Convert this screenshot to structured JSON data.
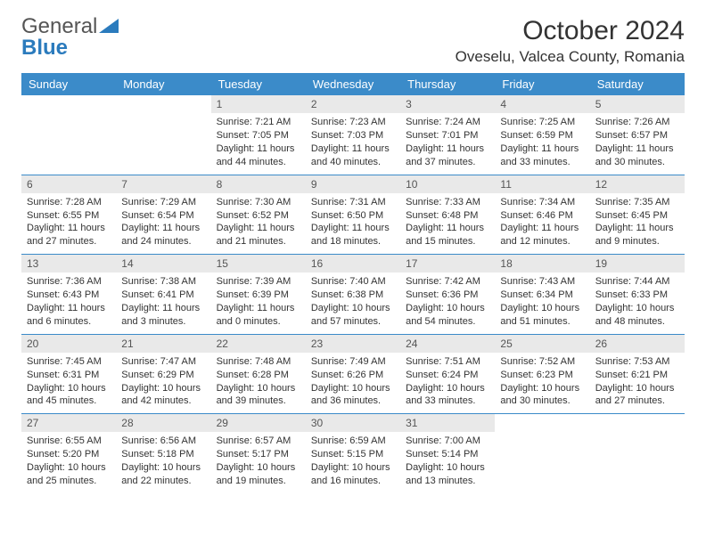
{
  "brand": {
    "part1": "General",
    "part2": "Blue"
  },
  "title": "October 2024",
  "location": "Oveselu, Valcea County, Romania",
  "colors": {
    "header_bar": "#3b8bc9",
    "header_text": "#ffffff",
    "day_num_bg": "#e9e9e9",
    "text": "#333333",
    "brand_blue": "#2b7bbd",
    "rule": "#3b8bc9",
    "background": "#ffffff"
  },
  "typography": {
    "title_fontsize": 30,
    "location_fontsize": 17,
    "dow_fontsize": 13,
    "daynum_fontsize": 12,
    "body_fontsize": 11
  },
  "dow": [
    "Sunday",
    "Monday",
    "Tuesday",
    "Wednesday",
    "Thursday",
    "Friday",
    "Saturday"
  ],
  "weeks": [
    [
      {
        "n": "",
        "sr": "",
        "ss": "",
        "dl": ""
      },
      {
        "n": "",
        "sr": "",
        "ss": "",
        "dl": ""
      },
      {
        "n": "1",
        "sr": "Sunrise: 7:21 AM",
        "ss": "Sunset: 7:05 PM",
        "dl": "Daylight: 11 hours and 44 minutes."
      },
      {
        "n": "2",
        "sr": "Sunrise: 7:23 AM",
        "ss": "Sunset: 7:03 PM",
        "dl": "Daylight: 11 hours and 40 minutes."
      },
      {
        "n": "3",
        "sr": "Sunrise: 7:24 AM",
        "ss": "Sunset: 7:01 PM",
        "dl": "Daylight: 11 hours and 37 minutes."
      },
      {
        "n": "4",
        "sr": "Sunrise: 7:25 AM",
        "ss": "Sunset: 6:59 PM",
        "dl": "Daylight: 11 hours and 33 minutes."
      },
      {
        "n": "5",
        "sr": "Sunrise: 7:26 AM",
        "ss": "Sunset: 6:57 PM",
        "dl": "Daylight: 11 hours and 30 minutes."
      }
    ],
    [
      {
        "n": "6",
        "sr": "Sunrise: 7:28 AM",
        "ss": "Sunset: 6:55 PM",
        "dl": "Daylight: 11 hours and 27 minutes."
      },
      {
        "n": "7",
        "sr": "Sunrise: 7:29 AM",
        "ss": "Sunset: 6:54 PM",
        "dl": "Daylight: 11 hours and 24 minutes."
      },
      {
        "n": "8",
        "sr": "Sunrise: 7:30 AM",
        "ss": "Sunset: 6:52 PM",
        "dl": "Daylight: 11 hours and 21 minutes."
      },
      {
        "n": "9",
        "sr": "Sunrise: 7:31 AM",
        "ss": "Sunset: 6:50 PM",
        "dl": "Daylight: 11 hours and 18 minutes."
      },
      {
        "n": "10",
        "sr": "Sunrise: 7:33 AM",
        "ss": "Sunset: 6:48 PM",
        "dl": "Daylight: 11 hours and 15 minutes."
      },
      {
        "n": "11",
        "sr": "Sunrise: 7:34 AM",
        "ss": "Sunset: 6:46 PM",
        "dl": "Daylight: 11 hours and 12 minutes."
      },
      {
        "n": "12",
        "sr": "Sunrise: 7:35 AM",
        "ss": "Sunset: 6:45 PM",
        "dl": "Daylight: 11 hours and 9 minutes."
      }
    ],
    [
      {
        "n": "13",
        "sr": "Sunrise: 7:36 AM",
        "ss": "Sunset: 6:43 PM",
        "dl": "Daylight: 11 hours and 6 minutes."
      },
      {
        "n": "14",
        "sr": "Sunrise: 7:38 AM",
        "ss": "Sunset: 6:41 PM",
        "dl": "Daylight: 11 hours and 3 minutes."
      },
      {
        "n": "15",
        "sr": "Sunrise: 7:39 AM",
        "ss": "Sunset: 6:39 PM",
        "dl": "Daylight: 11 hours and 0 minutes."
      },
      {
        "n": "16",
        "sr": "Sunrise: 7:40 AM",
        "ss": "Sunset: 6:38 PM",
        "dl": "Daylight: 10 hours and 57 minutes."
      },
      {
        "n": "17",
        "sr": "Sunrise: 7:42 AM",
        "ss": "Sunset: 6:36 PM",
        "dl": "Daylight: 10 hours and 54 minutes."
      },
      {
        "n": "18",
        "sr": "Sunrise: 7:43 AM",
        "ss": "Sunset: 6:34 PM",
        "dl": "Daylight: 10 hours and 51 minutes."
      },
      {
        "n": "19",
        "sr": "Sunrise: 7:44 AM",
        "ss": "Sunset: 6:33 PM",
        "dl": "Daylight: 10 hours and 48 minutes."
      }
    ],
    [
      {
        "n": "20",
        "sr": "Sunrise: 7:45 AM",
        "ss": "Sunset: 6:31 PM",
        "dl": "Daylight: 10 hours and 45 minutes."
      },
      {
        "n": "21",
        "sr": "Sunrise: 7:47 AM",
        "ss": "Sunset: 6:29 PM",
        "dl": "Daylight: 10 hours and 42 minutes."
      },
      {
        "n": "22",
        "sr": "Sunrise: 7:48 AM",
        "ss": "Sunset: 6:28 PM",
        "dl": "Daylight: 10 hours and 39 minutes."
      },
      {
        "n": "23",
        "sr": "Sunrise: 7:49 AM",
        "ss": "Sunset: 6:26 PM",
        "dl": "Daylight: 10 hours and 36 minutes."
      },
      {
        "n": "24",
        "sr": "Sunrise: 7:51 AM",
        "ss": "Sunset: 6:24 PM",
        "dl": "Daylight: 10 hours and 33 minutes."
      },
      {
        "n": "25",
        "sr": "Sunrise: 7:52 AM",
        "ss": "Sunset: 6:23 PM",
        "dl": "Daylight: 10 hours and 30 minutes."
      },
      {
        "n": "26",
        "sr": "Sunrise: 7:53 AM",
        "ss": "Sunset: 6:21 PM",
        "dl": "Daylight: 10 hours and 27 minutes."
      }
    ],
    [
      {
        "n": "27",
        "sr": "Sunrise: 6:55 AM",
        "ss": "Sunset: 5:20 PM",
        "dl": "Daylight: 10 hours and 25 minutes."
      },
      {
        "n": "28",
        "sr": "Sunrise: 6:56 AM",
        "ss": "Sunset: 5:18 PM",
        "dl": "Daylight: 10 hours and 22 minutes."
      },
      {
        "n": "29",
        "sr": "Sunrise: 6:57 AM",
        "ss": "Sunset: 5:17 PM",
        "dl": "Daylight: 10 hours and 19 minutes."
      },
      {
        "n": "30",
        "sr": "Sunrise: 6:59 AM",
        "ss": "Sunset: 5:15 PM",
        "dl": "Daylight: 10 hours and 16 minutes."
      },
      {
        "n": "31",
        "sr": "Sunrise: 7:00 AM",
        "ss": "Sunset: 5:14 PM",
        "dl": "Daylight: 10 hours and 13 minutes."
      },
      {
        "n": "",
        "sr": "",
        "ss": "",
        "dl": ""
      },
      {
        "n": "",
        "sr": "",
        "ss": "",
        "dl": ""
      }
    ]
  ]
}
